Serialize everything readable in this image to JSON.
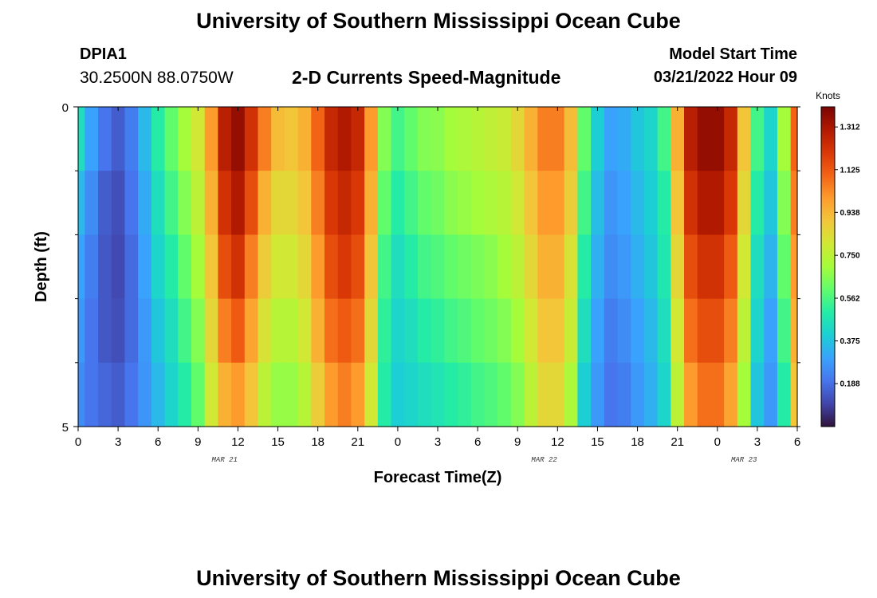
{
  "header": {
    "title": "University of Southern Mississippi Ocean Cube",
    "station": "DPIA1",
    "coordinates": "30.2500N  88.0750W",
    "subtitle": "2-D Currents Speed-Magnitude",
    "model_start_label": "Model Start Time",
    "model_start_value": "03/21/2022 Hour 09"
  },
  "footer": {
    "title": "University of Southern Mississippi Ocean Cube"
  },
  "chart_data": {
    "type": "heatmap",
    "title": "2-D Currents Speed-Magnitude",
    "xlabel": "Forecast Time(Z)",
    "ylabel": "Depth (ft)",
    "x_tick_labels": [
      "0",
      "3",
      "6",
      "9",
      "12",
      "15",
      "18",
      "21",
      "0",
      "3",
      "6",
      "9",
      "12",
      "15",
      "18",
      "21",
      "0",
      "3",
      "6"
    ],
    "date_labels": [
      {
        "label": "MAR 21",
        "hour": 11
      },
      {
        "label": "MAR 22",
        "hour": 35
      },
      {
        "label": "MAR 23",
        "hour": 50
      }
    ],
    "x_range_hours": [
      0,
      54
    ],
    "y_range_ft": [
      0,
      5
    ],
    "y_tick_labels": [
      "0",
      "5"
    ],
    "depth_layers_ft": [
      0,
      1,
      2,
      3,
      4,
      5
    ],
    "colorbar": {
      "units": "Knots",
      "range": [
        0.0,
        1.4
      ],
      "tick_values": [
        0.188,
        0.375,
        0.562,
        0.75,
        0.938,
        1.125,
        1.312
      ],
      "tick_labels": [
        "0.188",
        "0.375",
        "0.562",
        "0.750",
        "0.938",
        "1.125",
        "1.312"
      ],
      "colormap": [
        "#30123b",
        "#4145ab",
        "#4675ed",
        "#39a2fc",
        "#1bcfd4",
        "#24eca6",
        "#61fc6c",
        "#a4fc3b",
        "#d1e834",
        "#f3c63a",
        "#fe9b2d",
        "#f36315",
        "#d93806",
        "#b11901",
        "#7a0402"
      ]
    },
    "time_hours": [
      0,
      1,
      2,
      3,
      4,
      5,
      6,
      7,
      8,
      9,
      10,
      11,
      12,
      13,
      14,
      15,
      16,
      17,
      18,
      19,
      20,
      21,
      22,
      23,
      24,
      25,
      26,
      27,
      28,
      29,
      30,
      31,
      32,
      33,
      34,
      35,
      36,
      37,
      38,
      39,
      40,
      41,
      42,
      43,
      44,
      45,
      46,
      47,
      48,
      49,
      50,
      51,
      52,
      53,
      54
    ],
    "speed_knots": [
      [
        0.45,
        0.3,
        0.2,
        0.15,
        0.22,
        0.35,
        0.5,
        0.6,
        0.7,
        0.8,
        1.0,
        1.28,
        1.35,
        1.22,
        1.05,
        0.92,
        0.9,
        0.95,
        1.1,
        1.25,
        1.3,
        1.25,
        1.0,
        0.65,
        0.55,
        0.6,
        0.65,
        0.66,
        0.7,
        0.72,
        0.74,
        0.76,
        0.78,
        0.85,
        0.95,
        1.05,
        1.05,
        0.92,
        0.6,
        0.4,
        0.3,
        0.32,
        0.38,
        0.42,
        0.55,
        0.95,
        1.28,
        1.35,
        1.35,
        1.25,
        0.9,
        0.55,
        0.42,
        0.7,
        1.1
      ],
      [
        0.35,
        0.25,
        0.15,
        0.12,
        0.2,
        0.32,
        0.45,
        0.55,
        0.65,
        0.75,
        0.95,
        1.22,
        1.3,
        1.15,
        0.95,
        0.85,
        0.85,
        0.9,
        1.05,
        1.2,
        1.25,
        1.2,
        0.95,
        0.6,
        0.5,
        0.55,
        0.6,
        0.62,
        0.66,
        0.68,
        0.7,
        0.72,
        0.74,
        0.8,
        0.9,
        1.0,
        1.0,
        0.88,
        0.55,
        0.36,
        0.27,
        0.3,
        0.35,
        0.4,
        0.5,
        0.9,
        1.22,
        1.3,
        1.3,
        1.2,
        0.85,
        0.5,
        0.38,
        0.65,
        1.05
      ],
      [
        0.3,
        0.22,
        0.14,
        0.11,
        0.18,
        0.3,
        0.42,
        0.5,
        0.6,
        0.7,
        0.9,
        1.15,
        1.22,
        1.05,
        0.88,
        0.8,
        0.8,
        0.85,
        1.0,
        1.15,
        1.2,
        1.15,
        0.9,
        0.55,
        0.45,
        0.5,
        0.55,
        0.57,
        0.6,
        0.62,
        0.64,
        0.66,
        0.7,
        0.75,
        0.85,
        0.95,
        0.95,
        0.82,
        0.5,
        0.33,
        0.25,
        0.28,
        0.33,
        0.38,
        0.48,
        0.85,
        1.15,
        1.22,
        1.22,
        1.12,
        0.8,
        0.45,
        0.34,
        0.6,
        1.0
      ],
      [
        0.28,
        0.2,
        0.14,
        0.12,
        0.18,
        0.28,
        0.38,
        0.45,
        0.55,
        0.65,
        0.85,
        1.05,
        1.12,
        0.98,
        0.82,
        0.74,
        0.74,
        0.8,
        0.95,
        1.08,
        1.12,
        1.08,
        0.85,
        0.52,
        0.42,
        0.45,
        0.5,
        0.52,
        0.55,
        0.57,
        0.6,
        0.62,
        0.65,
        0.7,
        0.8,
        0.9,
        0.9,
        0.78,
        0.45,
        0.3,
        0.22,
        0.25,
        0.3,
        0.35,
        0.45,
        0.8,
        1.08,
        1.15,
        1.15,
        1.05,
        0.75,
        0.42,
        0.3,
        0.55,
        0.95
      ],
      [
        0.25,
        0.2,
        0.17,
        0.15,
        0.2,
        0.27,
        0.35,
        0.42,
        0.5,
        0.6,
        0.8,
        0.95,
        1.0,
        0.9,
        0.75,
        0.68,
        0.68,
        0.74,
        0.88,
        1.0,
        1.05,
        1.0,
        0.8,
        0.5,
        0.4,
        0.42,
        0.45,
        0.47,
        0.5,
        0.52,
        0.55,
        0.57,
        0.6,
        0.65,
        0.75,
        0.85,
        0.85,
        0.72,
        0.4,
        0.28,
        0.2,
        0.22,
        0.28,
        0.33,
        0.42,
        0.75,
        1.0,
        1.08,
        1.08,
        0.98,
        0.7,
        0.38,
        0.28,
        0.5,
        0.9
      ]
    ]
  }
}
